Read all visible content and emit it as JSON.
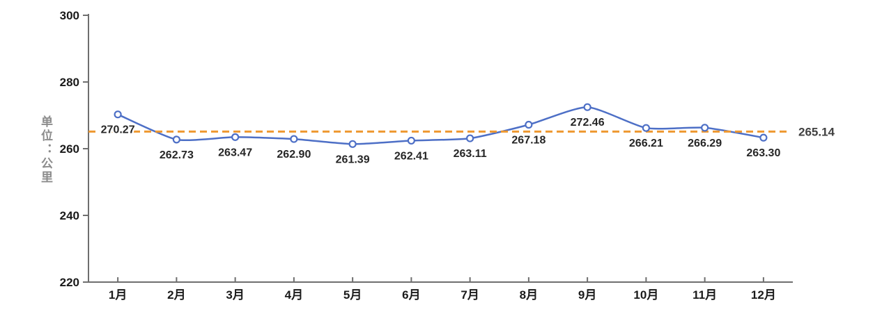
{
  "chart_data": {
    "type": "line",
    "title": "",
    "xlabel": "",
    "ylabel": "单位：公里",
    "categories": [
      "1月",
      "2月",
      "3月",
      "4月",
      "5月",
      "6月",
      "7月",
      "8月",
      "9月",
      "10月",
      "11月",
      "12月"
    ],
    "series": [
      {
        "name": "monthly-distance",
        "values": [
          270.27,
          262.73,
          263.47,
          262.9,
          261.39,
          262.41,
          263.11,
          267.18,
          272.46,
          266.21,
          266.29,
          263.3
        ],
        "labels": [
          "270.27",
          "262.73",
          "263.47",
          "262.90",
          "261.39",
          "262.41",
          "263.11",
          "267.18",
          "272.46",
          "266.21",
          "266.29",
          "263.30"
        ]
      }
    ],
    "reference_line": {
      "value": 265.14,
      "label": "265.14",
      "style": "dashed"
    },
    "ylim": [
      220,
      300
    ],
    "yticks": [
      220,
      240,
      260,
      280,
      300
    ],
    "grid": "off",
    "legend": "none",
    "marker": "open-circle",
    "colors": {
      "line": "#4d6fc6",
      "marker_fill": "#ffffff",
      "reference_line": "#ee9830",
      "value_label": "#262626",
      "reference_label": "#404040",
      "axis_line": "#6e6e6e",
      "tick_label": "#1a1a1a",
      "unit_label": "#8c8c8c",
      "background": "#ffffff"
    }
  }
}
